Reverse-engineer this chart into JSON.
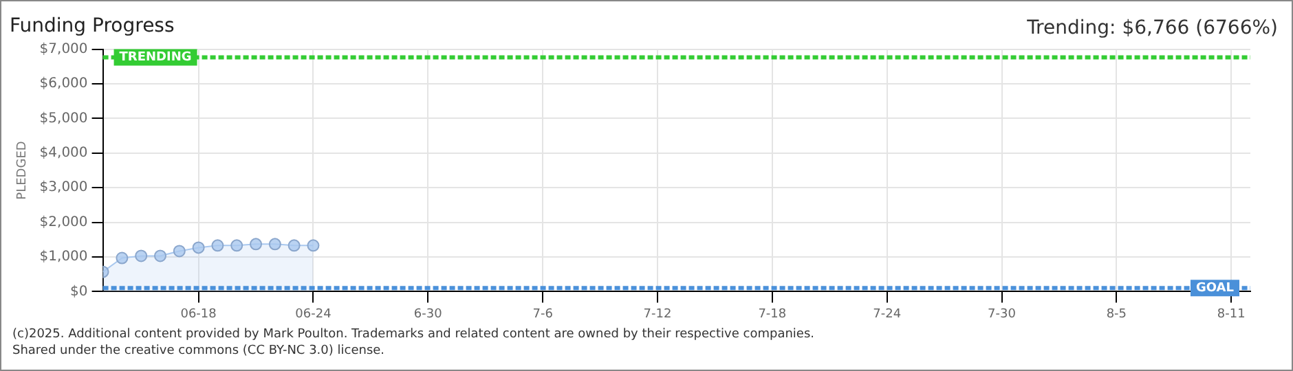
{
  "chart_data": {
    "type": "area",
    "title": "Funding Progress",
    "ylabel": "PLEDGED",
    "annotations": [
      "Trending: $6,766 (6766%)",
      "(c)2025. Additional content provided by Mark Poulton. Trademarks and related content are owned by their respective companies.",
      "Shared under the creative commons (CC BY-NC 3.0) license."
    ],
    "x": [
      "--06-13",
      "--06-14",
      "--06-15",
      "--06-16",
      "--06-17",
      "--06-18",
      "--06-19",
      "--06-20",
      "--06-21",
      "--06-22",
      "--06-23",
      "--06-24"
    ],
    "series": [
      {
        "color": "#a9c8ef",
        "values": [
          570,
          970,
          1030,
          1030,
          1170,
          1270,
          1330,
          1330,
          1370,
          1370,
          1330,
          1330
        ]
      }
    ],
    "xlim": [
      "--06-13",
      "--08-12"
    ],
    "xticks": [
      {
        "value": "--06-18",
        "label": "06-18"
      },
      {
        "value": "--06-24",
        "label": "06-24"
      },
      {
        "value": "--06-30",
        "label": "6-30"
      },
      {
        "value": "--07-06",
        "label": "7-6"
      },
      {
        "value": "--07-12",
        "label": "7-12"
      },
      {
        "value": "--07-18",
        "label": "7-18"
      },
      {
        "value": "--07-24",
        "label": "7-24"
      },
      {
        "value": "--07-30",
        "label": "7-30"
      },
      {
        "value": "--08-05",
        "label": "8-5"
      },
      {
        "value": "--08-11",
        "label": "8-11"
      }
    ],
    "ylim": [
      0,
      7000
    ],
    "yticks": [
      {
        "value": 0,
        "label": "$0"
      },
      {
        "value": 1000,
        "label": "$1,000"
      },
      {
        "value": 2000,
        "label": "$2,000"
      },
      {
        "value": 3000,
        "label": "$3,000"
      },
      {
        "value": 4000,
        "label": "$4,000"
      },
      {
        "value": 5000,
        "label": "$5,000"
      },
      {
        "value": 6000,
        "label": "$6,000"
      },
      {
        "value": 7000,
        "label": "$7,000"
      }
    ],
    "ref_lines": [
      {
        "axis": "y",
        "value": 6766,
        "label": "TRENDING",
        "color": "#33cc33",
        "line_style": "dashed"
      },
      {
        "axis": "y",
        "value": 100,
        "label": "GOAL",
        "color": "#4a90d9",
        "line_style": "dashed"
      }
    ],
    "grid": true,
    "legend": false,
    "marker": "circle",
    "line_style": "solid"
  }
}
